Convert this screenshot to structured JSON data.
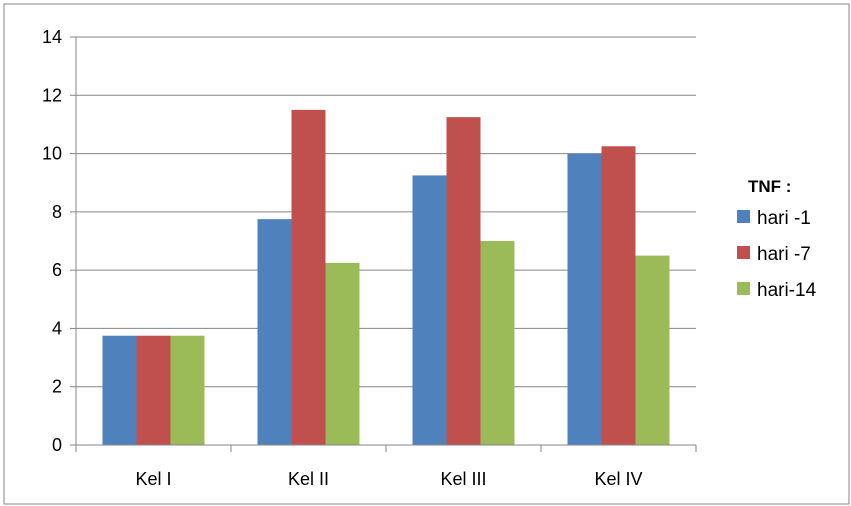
{
  "chart_data": {
    "type": "bar",
    "categories": [
      "Kel I",
      "Kel II",
      "Kel III",
      "Kel IV"
    ],
    "series": [
      {
        "name": "hari -1",
        "color": "#4F81BD",
        "values": [
          3.75,
          7.75,
          9.25,
          10.0
        ]
      },
      {
        "name": "hari -7",
        "color": "#C0504D",
        "values": [
          3.75,
          11.5,
          11.25,
          10.25
        ]
      },
      {
        "name": "hari-14",
        "color": "#9BBB59",
        "values": [
          3.75,
          6.25,
          7.0,
          6.5
        ]
      }
    ],
    "legend_title": "TNF :",
    "ylim": [
      0,
      14
    ],
    "yticks": [
      "0",
      "2",
      "4",
      "6",
      "8",
      "10",
      "12",
      "14"
    ],
    "grid": true,
    "legend_position": "right"
  }
}
